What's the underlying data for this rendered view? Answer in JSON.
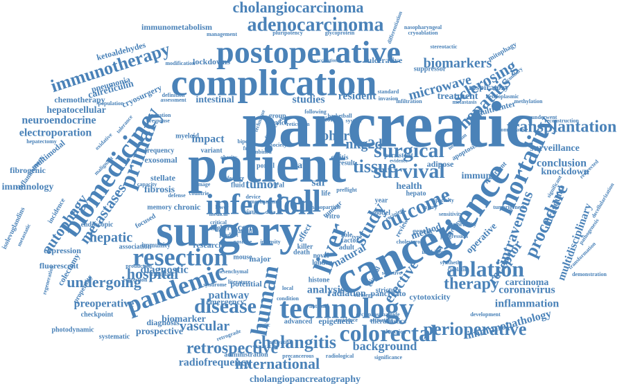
{
  "colors": {
    "word": "#4a82b8",
    "background": "#ffffff"
  },
  "words": [
    {
      "text": "pancreatic"
    },
    {
      "text": "patient"
    },
    {
      "text": "surgery"
    },
    {
      "text": "cancer"
    },
    {
      "text": "complication"
    },
    {
      "text": "infection"
    },
    {
      "text": "science"
    },
    {
      "text": "postoperative"
    },
    {
      "text": "technology"
    },
    {
      "text": "liver"
    },
    {
      "text": "cell"
    },
    {
      "text": "human"
    },
    {
      "text": "pandemic"
    },
    {
      "text": "resection"
    },
    {
      "text": "biomedicine"
    },
    {
      "text": "mortality"
    },
    {
      "text": "colorectal"
    },
    {
      "text": "primary"
    },
    {
      "text": "adenocarcinoma"
    },
    {
      "text": "immunotherapy"
    },
    {
      "text": "ablation"
    },
    {
      "text": "survival"
    },
    {
      "text": "disease"
    },
    {
      "text": "cholangiocarcinoma"
    },
    {
      "text": "surgical"
    },
    {
      "text": "perioperative"
    },
    {
      "text": "transplantation"
    },
    {
      "text": "therapy"
    },
    {
      "text": "retrospective"
    },
    {
      "text": "outcome"
    },
    {
      "text": "study"
    },
    {
      "text": "hospital"
    },
    {
      "text": "international"
    },
    {
      "text": "cholangitis"
    },
    {
      "text": "tissue"
    },
    {
      "text": "procedure"
    },
    {
      "text": "biomarkers"
    },
    {
      "text": "hepatitis"
    },
    {
      "text": "sclerosing"
    },
    {
      "text": "autophagy"
    },
    {
      "text": "metastases"
    },
    {
      "text": "undergoing"
    },
    {
      "text": "intravenous"
    },
    {
      "text": "hepatic"
    },
    {
      "text": "vascular"
    },
    {
      "text": "elective"
    },
    {
      "text": "microwave"
    },
    {
      "text": "receptor"
    },
    {
      "text": "cohort"
    },
    {
      "text": "nkg2d"
    },
    {
      "text": "tumor"
    },
    {
      "text": "background"
    },
    {
      "text": "radiofrequency"
    },
    {
      "text": "cholangiopancreatography"
    },
    {
      "text": "electroporation"
    },
    {
      "text": "neuroendocrine"
    },
    {
      "text": "inflammation"
    },
    {
      "text": "coronavirus"
    },
    {
      "text": "carcinoma"
    },
    {
      "text": "immunopathology"
    },
    {
      "text": "multidisciplinary"
    },
    {
      "text": "ultrasound"
    },
    {
      "text": "conclusion"
    },
    {
      "text": "surveillance"
    },
    {
      "text": "knockdown"
    },
    {
      "text": "diagnostic"
    },
    {
      "text": "preoperative"
    },
    {
      "text": "studies"
    },
    {
      "text": "resident"
    },
    {
      "text": "intestinal"
    },
    {
      "text": "hepatocellular"
    },
    {
      "text": "calreticulin"
    },
    {
      "text": "chemotherapy"
    },
    {
      "text": "pneumonia"
    },
    {
      "text": "ketoaldehydes"
    },
    {
      "text": "immunometabolism"
    },
    {
      "text": "management"
    },
    {
      "text": "pluripotency"
    },
    {
      "text": "glycoprotein"
    },
    {
      "text": "differentiation"
    },
    {
      "text": "cryoablation"
    },
    {
      "text": "nasopharyngeal"
    },
    {
      "text": "lockdowns"
    },
    {
      "text": "ulcerative"
    },
    {
      "text": "vaccination"
    },
    {
      "text": "suppressor"
    },
    {
      "text": "respiratory"
    },
    {
      "text": "treatment"
    },
    {
      "text": "multicenter"
    },
    {
      "text": "fibrosis"
    },
    {
      "text": "stellate"
    },
    {
      "text": "exosomal"
    },
    {
      "text": "frequency"
    },
    {
      "text": "impact"
    },
    {
      "text": "pathway"
    },
    {
      "text": "analysis"
    },
    {
      "text": "emergency"
    },
    {
      "text": "radiation"
    },
    {
      "text": "pancreato"
    },
    {
      "text": "cytotoxicity"
    },
    {
      "text": "immunity"
    },
    {
      "text": "research"
    },
    {
      "text": "fibrogenic"
    },
    {
      "text": "immunology"
    },
    {
      "text": "multimodal"
    },
    {
      "text": "inflammatory"
    },
    {
      "text": "endoscopic"
    },
    {
      "text": "expression"
    },
    {
      "text": "fluorescent"
    },
    {
      "text": "colectomy"
    },
    {
      "text": "prospective"
    },
    {
      "text": "biomarker"
    },
    {
      "text": "diagnosis"
    },
    {
      "text": "epigenetic"
    },
    {
      "text": "advanced"
    },
    {
      "text": "theranostics"
    },
    {
      "text": "development"
    },
    {
      "text": "demonstration"
    },
    {
      "text": "decellularization"
    },
    {
      "text": "isolevuglandins"
    },
    {
      "text": "metastatic"
    },
    {
      "text": "hepatectomy"
    },
    {
      "text": "administration"
    },
    {
      "text": "precancerous"
    },
    {
      "text": "radiological"
    },
    {
      "text": "significance"
    },
    {
      "text": "health"
    },
    {
      "text": "method"
    },
    {
      "text": "operative"
    },
    {
      "text": "rate"
    },
    {
      "text": "sar"
    },
    {
      "text": "life"
    },
    {
      "text": "cent"
    },
    {
      "text": "model"
    },
    {
      "text": "genetic"
    },
    {
      "text": "natural"
    },
    {
      "text": "clinical"
    },
    {
      "text": "review"
    },
    {
      "text": "group"
    },
    {
      "text": "service"
    },
    {
      "text": "lesion"
    },
    {
      "text": "system"
    },
    {
      "text": "colitis"
    },
    {
      "text": "result"
    },
    {
      "text": "persistent"
    },
    {
      "text": "evidence"
    },
    {
      "text": "adipose"
    },
    {
      "text": "immune"
    },
    {
      "text": "recurrent"
    },
    {
      "text": "apoptosis"
    },
    {
      "text": "neoplasm"
    },
    {
      "text": "comparative"
    },
    {
      "text": "underwent"
    },
    {
      "text": "reconstruction"
    },
    {
      "text": "methylation"
    },
    {
      "text": "endoplasmic"
    },
    {
      "text": "metastasis"
    },
    {
      "text": "standard"
    },
    {
      "text": "invasion"
    },
    {
      "text": "infiltration"
    },
    {
      "text": "secondary"
    },
    {
      "text": "mitophagy"
    },
    {
      "text": "stereotactic"
    },
    {
      "text": "cryosurgery"
    },
    {
      "text": "modification"
    },
    {
      "text": "myeloid"
    },
    {
      "text": "variant"
    },
    {
      "text": "capacity"
    },
    {
      "text": "damage"
    },
    {
      "text": "fluid"
    },
    {
      "text": "viral"
    },
    {
      "text": "year"
    },
    {
      "text": "virus"
    },
    {
      "text": "lower"
    },
    {
      "text": "chronic"
    },
    {
      "text": "memory"
    },
    {
      "text": "higher"
    },
    {
      "text": "medical"
    },
    {
      "text": "focused"
    },
    {
      "text": "production"
    },
    {
      "text": "transplant"
    },
    {
      "text": "regression"
    },
    {
      "text": "potential"
    },
    {
      "text": "histone"
    },
    {
      "text": "major"
    },
    {
      "text": "death"
    },
    {
      "text": "killer"
    },
    {
      "text": "mouse"
    },
    {
      "text": "novel"
    },
    {
      "text": "london"
    },
    {
      "text": "factor"
    },
    {
      "text": "adult"
    },
    {
      "text": "stricture"
    },
    {
      "text": "detection"
    },
    {
      "text": "residence"
    },
    {
      "text": "activating"
    },
    {
      "text": "photodynamic"
    },
    {
      "text": "systematic"
    },
    {
      "text": "checkpoint"
    },
    {
      "text": "propensity"
    },
    {
      "text": "association"
    },
    {
      "text": "retrograde"
    },
    {
      "text": "national"
    },
    {
      "text": "literature"
    },
    {
      "text": "local"
    },
    {
      "text": "role"
    },
    {
      "text": "type"
    },
    {
      "text": "data"
    },
    {
      "text": "vitro"
    },
    {
      "text": "tumour"
    },
    {
      "text": "effect"
    },
    {
      "text": "portal"
    },
    {
      "text": "operation"
    },
    {
      "text": "response"
    },
    {
      "text": "definition"
    },
    {
      "text": "assessment"
    },
    {
      "text": "population"
    },
    {
      "text": "tolerance"
    },
    {
      "text": "oxidative"
    },
    {
      "text": "malignant"
    },
    {
      "text": "incidence"
    },
    {
      "text": "regeneration"
    },
    {
      "text": "hepato"
    },
    {
      "text": "injury"
    },
    {
      "text": "pathogenesis"
    },
    {
      "text": "redirected"
    },
    {
      "text": "significant"
    },
    {
      "text": "transformation"
    },
    {
      "text": "recipient"
    },
    {
      "text": "heredity"
    },
    {
      "text": "specific"
    },
    {
      "text": "following"
    },
    {
      "text": "technique"
    },
    {
      "text": "conduction"
    },
    {
      "text": "reticulum"
    },
    {
      "text": "basketball"
    },
    {
      "text": "feature"
    },
    {
      "text": "defense"
    },
    {
      "text": "countrie"
    },
    {
      "text": "device"
    },
    {
      "text": "mechanism"
    },
    {
      "text": "critical"
    },
    {
      "text": "product"
    },
    {
      "text": "scaffold"
    },
    {
      "text": "positive"
    },
    {
      "text": "intensity"
    },
    {
      "text": "condition"
    },
    {
      "text": "strategy"
    },
    {
      "text": "activation"
    },
    {
      "text": "cystic"
    },
    {
      "text": "obesity"
    },
    {
      "text": "combined"
    },
    {
      "text": "society"
    },
    {
      "text": "bipolar"
    },
    {
      "text": "frail"
    },
    {
      "text": "preflight"
    },
    {
      "text": "specialty"
    },
    {
      "text": "sensitivity"
    },
    {
      "text": "tumorigenesis"
    },
    {
      "text": "selective"
    },
    {
      "text": "nanoparticle"
    },
    {
      "text": "cholesterol"
    },
    {
      "text": "inhibition"
    },
    {
      "text": "synthetic"
    },
    {
      "text": "cisplatin"
    },
    {
      "text": "mesenchymal"
    },
    {
      "text": "syndrome"
    },
    {
      "text": "cyclophosphamide"
    },
    {
      "text": "progression"
    },
    {
      "text": "morbidity"
    }
  ]
}
